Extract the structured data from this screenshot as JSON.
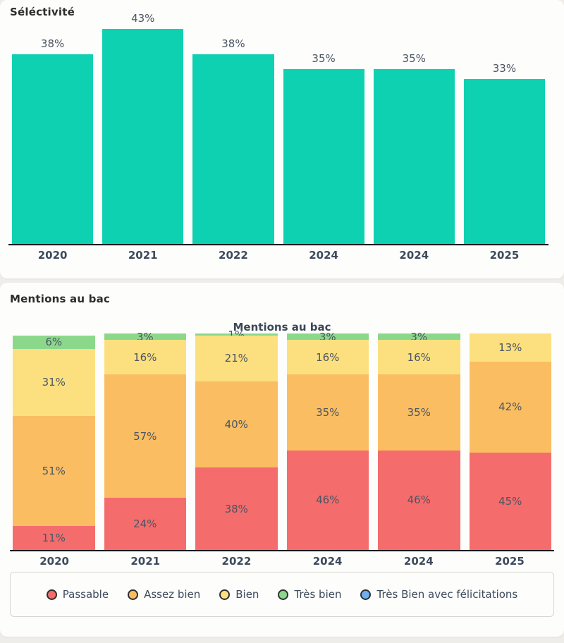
{
  "cards": {
    "selectivity": {
      "heading": "Séléctivité"
    },
    "mentions": {
      "heading": "Mentions au bac",
      "chart_title": "Mentions au bac"
    }
  },
  "colors": {
    "selectivity_bar": "#0ed1b2",
    "axis": "#15191e",
    "passable": "#f56c6c",
    "assez_bien": "#fabd62",
    "bien": "#fce07f",
    "tres_bien": "#8bd88b",
    "felicitations": "#6faff0",
    "segment_label": "#4b5563",
    "year_label": "#3d4a5c"
  },
  "chart_data": [
    {
      "type": "bar",
      "title": "Séléctivité",
      "categories": [
        "2020",
        "2021",
        "2022",
        "2024",
        "2024",
        "2025"
      ],
      "values": [
        38,
        43,
        38,
        35,
        35,
        33
      ],
      "value_suffix": "%",
      "bar_color": "#0ed1b2",
      "xlabel": "",
      "ylabel": "",
      "ylim": [
        0,
        45
      ],
      "grid": false,
      "legend_position": "none"
    },
    {
      "type": "bar",
      "stacked": true,
      "title": "Mentions au bac",
      "categories": [
        "2020",
        "2021",
        "2022",
        "2024",
        "2024",
        "2025"
      ],
      "series": [
        {
          "name": "Passable",
          "color": "#f56c6c",
          "values": [
            11,
            24,
            38,
            46,
            46,
            45
          ]
        },
        {
          "name": "Assez bien",
          "color": "#fabd62",
          "values": [
            51,
            57,
            40,
            35,
            35,
            42
          ]
        },
        {
          "name": "Bien",
          "color": "#fce07f",
          "values": [
            31,
            16,
            21,
            16,
            16,
            13
          ]
        },
        {
          "name": "Très bien",
          "color": "#8bd88b",
          "values": [
            6,
            3,
            1,
            3,
            3,
            0
          ]
        },
        {
          "name": "Très Bien avec félicitations",
          "color": "#6faff0",
          "values": [
            0,
            0,
            0,
            0,
            0,
            0
          ]
        }
      ],
      "value_suffix": "%",
      "ylim": [
        0,
        100
      ],
      "grid": false,
      "legend_position": "bottom"
    }
  ]
}
